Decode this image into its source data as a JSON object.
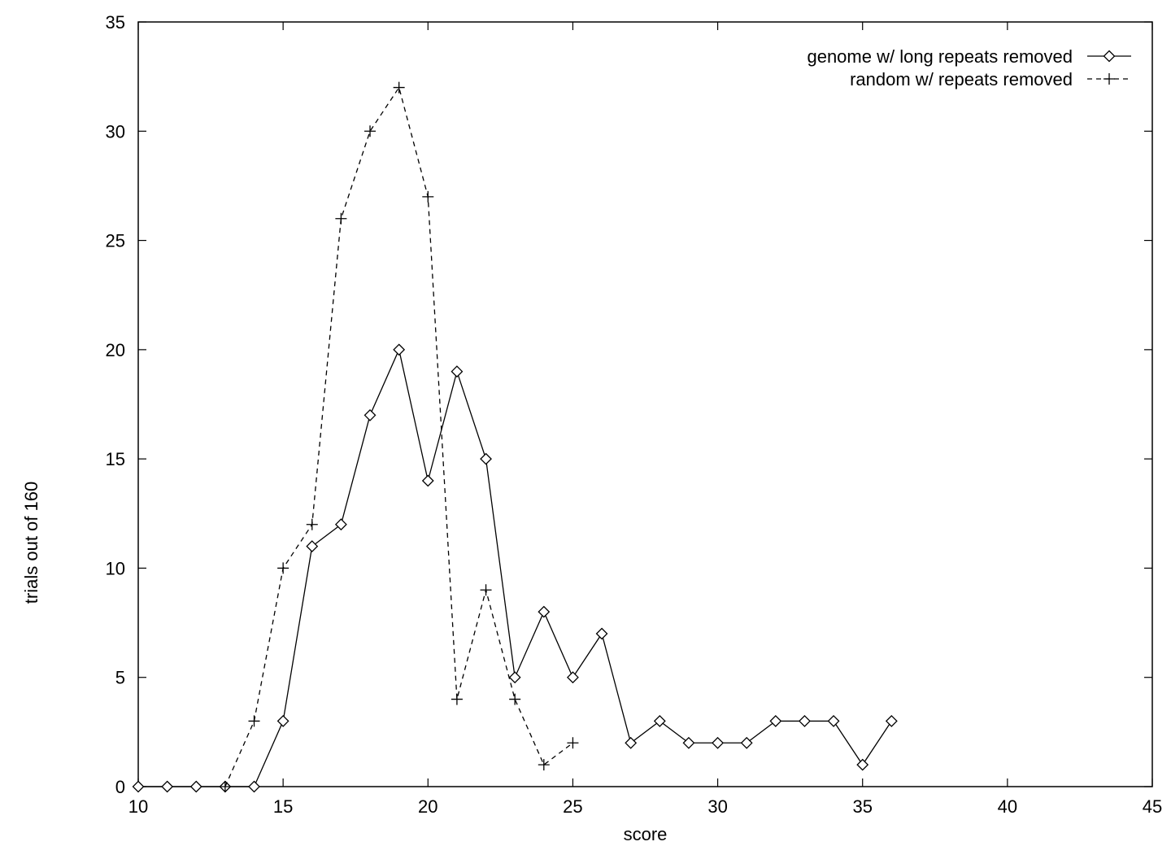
{
  "chart_data": {
    "type": "line",
    "title": "",
    "xlabel": "score",
    "ylabel": "trials out of 160",
    "xlim": [
      10,
      45
    ],
    "ylim": [
      0,
      35
    ],
    "xticks": [
      10,
      15,
      20,
      25,
      30,
      35,
      40,
      45
    ],
    "yticks": [
      0,
      5,
      10,
      15,
      20,
      25,
      30,
      35
    ],
    "grid": false,
    "legend_position": "top-right",
    "series": [
      {
        "name": "genome w/ long repeats removed",
        "marker": "diamond",
        "line_style": "solid",
        "color": "#000000",
        "x": [
          10,
          11,
          12,
          13,
          14,
          15,
          16,
          17,
          18,
          19,
          20,
          21,
          22,
          23,
          24,
          25,
          26,
          27,
          28,
          29,
          30,
          31,
          32,
          33,
          34,
          35,
          36
        ],
        "y": [
          0,
          0,
          0,
          0,
          0,
          3,
          11,
          12,
          17,
          20,
          14,
          19,
          15,
          5,
          8,
          5,
          7,
          2,
          3,
          2,
          2,
          2,
          3,
          3,
          3,
          1,
          3
        ]
      },
      {
        "name": "random w/ repeats removed",
        "marker": "plus",
        "line_style": "dashed",
        "color": "#000000",
        "x": [
          13,
          14,
          15,
          16,
          17,
          18,
          19,
          20,
          21,
          22,
          23,
          24,
          25
        ],
        "y": [
          0,
          3,
          10,
          12,
          26,
          30,
          32,
          27,
          4,
          9,
          4,
          1,
          2
        ]
      }
    ]
  }
}
